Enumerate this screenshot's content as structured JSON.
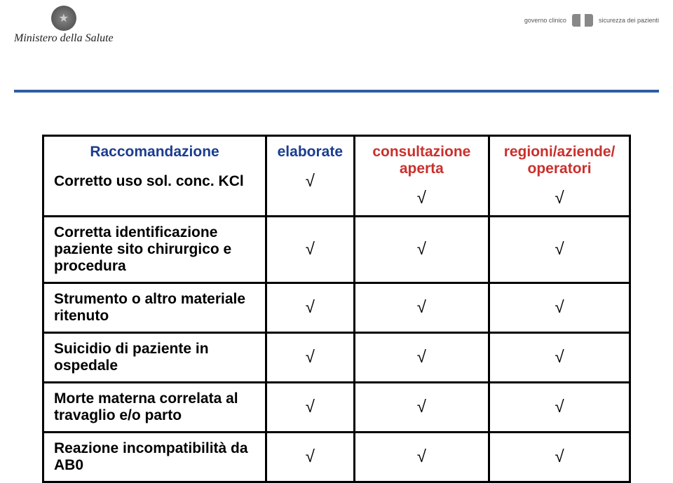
{
  "header": {
    "ministry": "Ministero della Salute",
    "right_top": "governo clinico",
    "right_bottom": "sicurezza dei pazienti"
  },
  "table": {
    "head": {
      "col0": "Raccomandazione",
      "col1": "elaborate",
      "col2": "consultazione aperta",
      "col3": "regioni/aziende/ operatori"
    },
    "check": "√",
    "rows": [
      {
        "label": "Corretto uso sol. conc. KCl",
        "c1": true,
        "c2": true,
        "c3": true
      },
      {
        "label": "Corretta identificazione paziente sito chirurgico e procedura",
        "c1": true,
        "c2": true,
        "c3": true
      },
      {
        "label": "Strumento o altro materiale ritenuto",
        "c1": true,
        "c2": true,
        "c3": true
      },
      {
        "label": "Suicidio di paziente in ospedale",
        "c1": true,
        "c2": true,
        "c3": true
      },
      {
        "label": "Morte materna correlata al travaglio e/o parto",
        "c1": true,
        "c2": true,
        "c3": true
      },
      {
        "label": "Reazione incompatibilità da AB0",
        "c1": true,
        "c2": true,
        "c3": true
      }
    ]
  },
  "colors": {
    "divider": "#2e5da3",
    "blue_text": "#1a3d8f",
    "red_text": "#c9302c",
    "border": "#000000",
    "background": "#ffffff"
  },
  "fonts": {
    "header_size_pt": 21,
    "body_size_pt": 21,
    "check_size_pt": 24
  }
}
